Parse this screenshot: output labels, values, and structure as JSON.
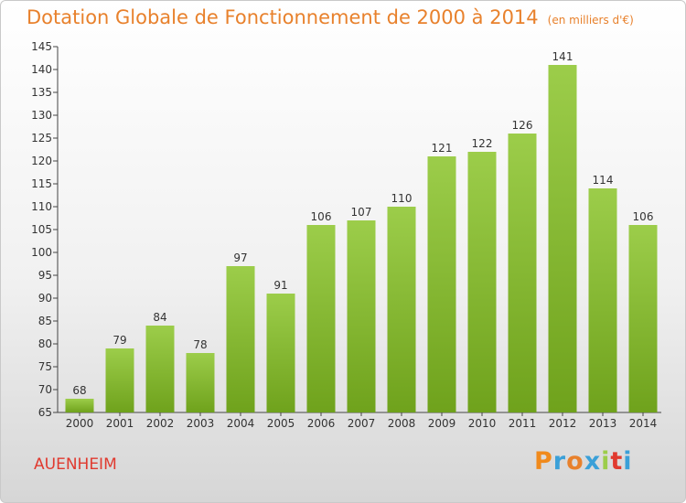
{
  "header": {
    "title": "Dotation Globale de Fonctionnement de 2000 à 2014",
    "unit": "(en milliers d'€)"
  },
  "footer": {
    "commune": "AUENHEIM",
    "logo": "Proxiti"
  },
  "colors": {
    "title": "#e8812c",
    "commune": "#e03a2f",
    "bar_light": "#9ccd4a",
    "bar_dark": "#6fa21c",
    "logo_letters": [
      "#f08a1c",
      "#3aa0d8",
      "#e8812c",
      "#3aa0d8",
      "#9ccd4a",
      "#e03a2f",
      "#3aa0d8"
    ]
  },
  "chart_data": {
    "type": "bar",
    "categories": [
      "2000",
      "2001",
      "2002",
      "2003",
      "2004",
      "2005",
      "2006",
      "2007",
      "2008",
      "2009",
      "2010",
      "2011",
      "2012",
      "2013",
      "2014"
    ],
    "values": [
      68,
      79,
      84,
      78,
      97,
      91,
      106,
      107,
      110,
      121,
      122,
      126,
      141,
      114,
      106
    ],
    "ylim": [
      65,
      145
    ],
    "yticks": [
      65,
      70,
      75,
      80,
      85,
      90,
      95,
      100,
      105,
      110,
      115,
      120,
      125,
      130,
      135,
      140,
      145
    ],
    "grid": false,
    "data_labels": true
  }
}
